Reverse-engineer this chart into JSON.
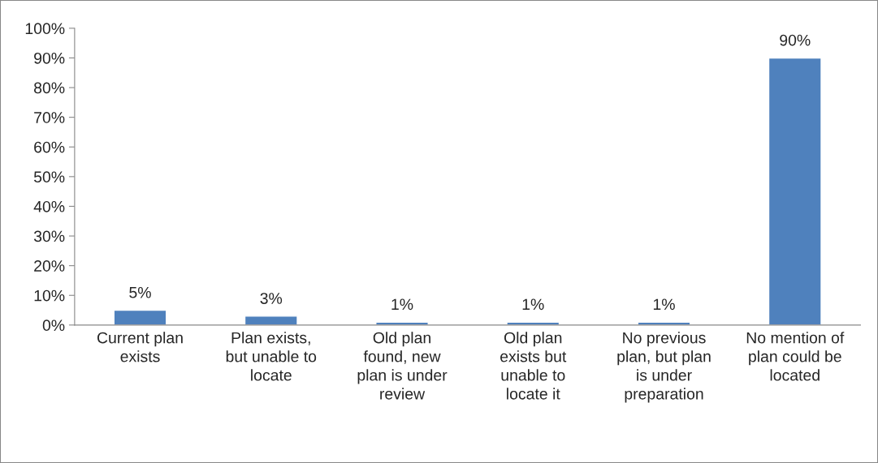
{
  "chart_data": {
    "type": "bar",
    "categories": [
      "Current plan exists",
      "Plan exists, but unable to locate",
      "Old plan found, new plan is under review",
      "Old plan exists but unable to locate it",
      "No previous plan, but plan is under preparation",
      "No mention of plan could be located"
    ],
    "values": [
      5,
      3,
      1,
      1,
      1,
      90
    ],
    "value_labels": [
      "5%",
      "3%",
      "1%",
      "1%",
      "1%",
      "90%"
    ],
    "color": "#4f81bd",
    "ylim": [
      0,
      100
    ],
    "yticks": [
      {
        "value": 0,
        "label": "0%"
      },
      {
        "value": 10,
        "label": "10%"
      },
      {
        "value": 20,
        "label": "20%"
      },
      {
        "value": 30,
        "label": "30%"
      },
      {
        "value": 40,
        "label": "40%"
      },
      {
        "value": 50,
        "label": "50%"
      },
      {
        "value": 60,
        "label": "60%"
      },
      {
        "value": 70,
        "label": "70%"
      },
      {
        "value": 80,
        "label": "80%"
      },
      {
        "value": 90,
        "label": "90%"
      },
      {
        "value": 100,
        "label": "100%"
      }
    ],
    "grid": false,
    "legend": false
  }
}
